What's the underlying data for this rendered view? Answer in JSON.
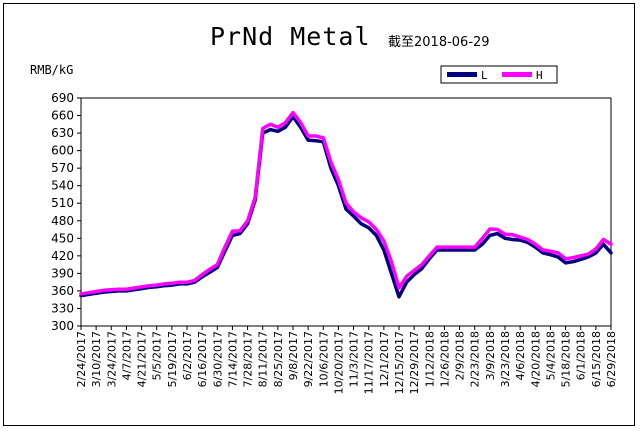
{
  "chart_data": {
    "type": "line",
    "title": "PrNd Metal",
    "subtitle": "截至2018-06-29",
    "ylabel": "RMB/kG",
    "xlabel": "",
    "ylim": [
      300,
      690
    ],
    "yticks": [
      300,
      330,
      360,
      390,
      420,
      450,
      480,
      510,
      540,
      570,
      600,
      630,
      660,
      690
    ],
    "xlim": [
      "2017-02-24",
      "2018-06-29"
    ],
    "x_tick_labels": [
      "2/24/2017",
      "3/10/2017",
      "3/24/2017",
      "4/7/2017",
      "4/21/2017",
      "5/5/2017",
      "5/19/2017",
      "6/2/2017",
      "6/16/2017",
      "6/30/2017",
      "7/14/2017",
      "7/28/2017",
      "8/11/2017",
      "8/25/2017",
      "9/8/2017",
      "9/22/2017",
      "10/6/2017",
      "10/20/2017",
      "11/3/2017",
      "11/17/2017",
      "12/1/2017",
      "12/15/2017",
      "12/29/2017",
      "1/12/2018",
      "1/26/2018",
      "2/9/2018",
      "2/23/2018",
      "3/9/2018",
      "3/23/2018",
      "4/6/2018",
      "4/20/2018",
      "5/4/2018",
      "5/18/2018",
      "6/1/2018",
      "6/15/2018",
      "6/29/2018"
    ],
    "legend_position": "top-right",
    "grid": false,
    "series": [
      {
        "name": "L",
        "color": "#000080",
        "points": [
          [
            "2017-02-24",
            352
          ],
          [
            "2017-03-03",
            354
          ],
          [
            "2017-03-10",
            356
          ],
          [
            "2017-03-17",
            358
          ],
          [
            "2017-03-24",
            359
          ],
          [
            "2017-03-31",
            360
          ],
          [
            "2017-04-07",
            360
          ],
          [
            "2017-04-14",
            362
          ],
          [
            "2017-04-21",
            364
          ],
          [
            "2017-04-28",
            366
          ],
          [
            "2017-05-05",
            367
          ],
          [
            "2017-05-12",
            369
          ],
          [
            "2017-05-19",
            370
          ],
          [
            "2017-05-26",
            372
          ],
          [
            "2017-06-02",
            372
          ],
          [
            "2017-06-09",
            375
          ],
          [
            "2017-06-16",
            384
          ],
          [
            "2017-06-23",
            392
          ],
          [
            "2017-06-30",
            400
          ],
          [
            "2017-07-07",
            428
          ],
          [
            "2017-07-14",
            455
          ],
          [
            "2017-07-21",
            458
          ],
          [
            "2017-07-28",
            475
          ],
          [
            "2017-08-04",
            515
          ],
          [
            "2017-08-11",
            630
          ],
          [
            "2017-08-18",
            636
          ],
          [
            "2017-08-25",
            633
          ],
          [
            "2017-09-01",
            640
          ],
          [
            "2017-09-08",
            658
          ],
          [
            "2017-09-15",
            640
          ],
          [
            "2017-09-22",
            618
          ],
          [
            "2017-09-29",
            617
          ],
          [
            "2017-10-06",
            615
          ],
          [
            "2017-10-13",
            570
          ],
          [
            "2017-10-20",
            540
          ],
          [
            "2017-10-27",
            500
          ],
          [
            "2017-11-03",
            488
          ],
          [
            "2017-11-10",
            475
          ],
          [
            "2017-11-17",
            468
          ],
          [
            "2017-11-24",
            455
          ],
          [
            "2017-12-01",
            430
          ],
          [
            "2017-12-08",
            390
          ],
          [
            "2017-12-15",
            350
          ],
          [
            "2017-12-22",
            375
          ],
          [
            "2017-12-29",
            388
          ],
          [
            "2018-01-05",
            398
          ],
          [
            "2018-01-12",
            415
          ],
          [
            "2018-01-19",
            430
          ],
          [
            "2018-01-26",
            430
          ],
          [
            "2018-02-02",
            430
          ],
          [
            "2018-02-09",
            430
          ],
          [
            "2018-02-16",
            430
          ],
          [
            "2018-02-23",
            430
          ],
          [
            "2018-03-02",
            440
          ],
          [
            "2018-03-09",
            455
          ],
          [
            "2018-03-16",
            458
          ],
          [
            "2018-03-23",
            450
          ],
          [
            "2018-03-30",
            448
          ],
          [
            "2018-04-06",
            447
          ],
          [
            "2018-04-13",
            443
          ],
          [
            "2018-04-20",
            435
          ],
          [
            "2018-04-27",
            425
          ],
          [
            "2018-05-04",
            422
          ],
          [
            "2018-05-11",
            418
          ],
          [
            "2018-05-18",
            408
          ],
          [
            "2018-05-25",
            410
          ],
          [
            "2018-06-01",
            414
          ],
          [
            "2018-06-08",
            418
          ],
          [
            "2018-06-15",
            425
          ],
          [
            "2018-06-22",
            440
          ],
          [
            "2018-06-29",
            425
          ]
        ]
      },
      {
        "name": "H",
        "color": "#ff00ff",
        "points": [
          [
            "2017-02-24",
            355
          ],
          [
            "2017-03-03",
            357
          ],
          [
            "2017-03-10",
            359
          ],
          [
            "2017-03-17",
            361
          ],
          [
            "2017-03-24",
            362
          ],
          [
            "2017-03-31",
            363
          ],
          [
            "2017-04-07",
            363
          ],
          [
            "2017-04-14",
            365
          ],
          [
            "2017-04-21",
            367
          ],
          [
            "2017-04-28",
            369
          ],
          [
            "2017-05-05",
            370
          ],
          [
            "2017-05-12",
            372
          ],
          [
            "2017-05-19",
            373
          ],
          [
            "2017-05-26",
            375
          ],
          [
            "2017-06-02",
            375
          ],
          [
            "2017-06-09",
            378
          ],
          [
            "2017-06-16",
            388
          ],
          [
            "2017-06-23",
            397
          ],
          [
            "2017-06-30",
            405
          ],
          [
            "2017-07-07",
            435
          ],
          [
            "2017-07-14",
            462
          ],
          [
            "2017-07-21",
            463
          ],
          [
            "2017-07-28",
            480
          ],
          [
            "2017-08-04",
            520
          ],
          [
            "2017-08-11",
            638
          ],
          [
            "2017-08-18",
            645
          ],
          [
            "2017-08-25",
            640
          ],
          [
            "2017-09-01",
            648
          ],
          [
            "2017-09-08",
            665
          ],
          [
            "2017-09-15",
            648
          ],
          [
            "2017-09-22",
            625
          ],
          [
            "2017-09-29",
            625
          ],
          [
            "2017-10-06",
            622
          ],
          [
            "2017-10-13",
            580
          ],
          [
            "2017-10-20",
            550
          ],
          [
            "2017-10-27",
            510
          ],
          [
            "2017-11-03",
            495
          ],
          [
            "2017-11-10",
            485
          ],
          [
            "2017-11-17",
            478
          ],
          [
            "2017-11-24",
            465
          ],
          [
            "2017-12-01",
            445
          ],
          [
            "2017-12-08",
            410
          ],
          [
            "2017-12-15",
            365
          ],
          [
            "2017-12-22",
            385
          ],
          [
            "2017-12-29",
            395
          ],
          [
            "2018-01-05",
            405
          ],
          [
            "2018-01-12",
            420
          ],
          [
            "2018-01-19",
            435
          ],
          [
            "2018-01-26",
            435
          ],
          [
            "2018-02-02",
            435
          ],
          [
            "2018-02-09",
            435
          ],
          [
            "2018-02-16",
            435
          ],
          [
            "2018-02-23",
            435
          ],
          [
            "2018-03-02",
            450
          ],
          [
            "2018-03-09",
            466
          ],
          [
            "2018-03-16",
            465
          ],
          [
            "2018-03-23",
            457
          ],
          [
            "2018-03-30",
            456
          ],
          [
            "2018-04-06",
            452
          ],
          [
            "2018-04-13",
            448
          ],
          [
            "2018-04-20",
            440
          ],
          [
            "2018-04-27",
            430
          ],
          [
            "2018-05-04",
            428
          ],
          [
            "2018-05-11",
            425
          ],
          [
            "2018-05-18",
            415
          ],
          [
            "2018-05-25",
            417
          ],
          [
            "2018-06-01",
            420
          ],
          [
            "2018-06-08",
            423
          ],
          [
            "2018-06-15",
            432
          ],
          [
            "2018-06-22",
            448
          ],
          [
            "2018-06-29",
            440
          ]
        ]
      }
    ]
  }
}
